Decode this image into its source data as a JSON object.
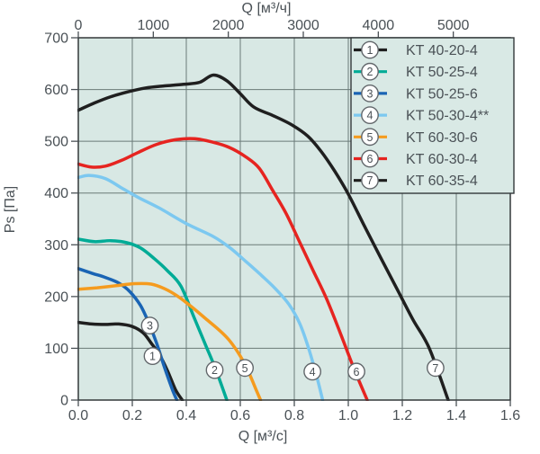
{
  "chart_data": {
    "type": "line",
    "x_axis_bottom": {
      "label": "Q [м³/с]",
      "range": [
        0,
        1.6
      ],
      "ticks": [
        0,
        0.2,
        0.4,
        0.6,
        0.8,
        1.0,
        1.2,
        1.4,
        1.6
      ],
      "tick_labels": [
        "0.0",
        "0.2",
        "0.4",
        "0.6",
        "0.8",
        "1.0",
        "1.2",
        "1.4",
        "1.6"
      ]
    },
    "x_axis_top": {
      "label": "Q [м³/ч]",
      "range": [
        0,
        5760
      ],
      "ticks": [
        0,
        1000,
        2000,
        3000,
        4000,
        5000
      ],
      "tick_labels": [
        "0",
        "1000",
        "2000",
        "3000",
        "4000",
        "5000"
      ]
    },
    "y_axis": {
      "label": "Ps [Па]",
      "range": [
        0,
        700
      ],
      "ticks": [
        0,
        100,
        200,
        300,
        400,
        500,
        600,
        700
      ],
      "tick_labels": [
        "0",
        "100",
        "200",
        "300",
        "400",
        "500",
        "600",
        "700"
      ]
    },
    "grid": true,
    "legend_position": "top-right",
    "series": [
      {
        "number": "1",
        "name": "KT 40-20-4",
        "color": "#1f1f1f",
        "marker": {
          "q": 0.275,
          "p": 85
        },
        "points": [
          [
            0,
            150
          ],
          [
            0.05,
            147
          ],
          [
            0.1,
            146
          ],
          [
            0.15,
            147
          ],
          [
            0.2,
            142
          ],
          [
            0.24,
            130
          ],
          [
            0.27,
            110
          ],
          [
            0.3,
            88
          ],
          [
            0.33,
            57
          ],
          [
            0.36,
            20
          ],
          [
            0.385,
            0
          ]
        ]
      },
      {
        "number": "2",
        "name": "KT 50-25-4",
        "color": "#00ab96",
        "marker": {
          "q": 0.505,
          "p": 58
        },
        "points": [
          [
            0,
            311
          ],
          [
            0.06,
            306
          ],
          [
            0.12,
            308
          ],
          [
            0.18,
            304
          ],
          [
            0.23,
            294
          ],
          [
            0.28,
            274
          ],
          [
            0.33,
            250
          ],
          [
            0.38,
            220
          ],
          [
            0.43,
            158
          ],
          [
            0.47,
            108
          ],
          [
            0.51,
            58
          ],
          [
            0.55,
            0
          ]
        ]
      },
      {
        "number": "3",
        "name": "KT 50-25-6",
        "color": "#1a64b4",
        "marker": {
          "q": 0.265,
          "p": 144
        },
        "points": [
          [
            0,
            254
          ],
          [
            0.05,
            245
          ],
          [
            0.1,
            237
          ],
          [
            0.15,
            226
          ],
          [
            0.19,
            210
          ],
          [
            0.23,
            183
          ],
          [
            0.26,
            150
          ],
          [
            0.29,
            110
          ],
          [
            0.32,
            62
          ],
          [
            0.35,
            18
          ],
          [
            0.365,
            0
          ]
        ]
      },
      {
        "number": "4",
        "name": "KT 50-30-4**",
        "color": "#7cc8f0",
        "marker": {
          "q": 0.867,
          "p": 55
        },
        "points": [
          [
            0,
            430
          ],
          [
            0.04,
            434
          ],
          [
            0.1,
            428
          ],
          [
            0.16,
            410
          ],
          [
            0.22,
            392
          ],
          [
            0.3,
            371
          ],
          [
            0.4,
            341
          ],
          [
            0.5,
            316
          ],
          [
            0.56,
            295
          ],
          [
            0.62,
            268
          ],
          [
            0.68,
            240
          ],
          [
            0.73,
            215
          ],
          [
            0.78,
            185
          ],
          [
            0.82,
            148
          ],
          [
            0.85,
            105
          ],
          [
            0.88,
            52
          ],
          [
            0.905,
            0
          ]
        ]
      },
      {
        "number": "5",
        "name": "KT 60-30-6",
        "color": "#f59b1e",
        "marker": {
          "q": 0.617,
          "p": 62
        },
        "points": [
          [
            0,
            214
          ],
          [
            0.07,
            217
          ],
          [
            0.14,
            221
          ],
          [
            0.21,
            225
          ],
          [
            0.27,
            224
          ],
          [
            0.32,
            215
          ],
          [
            0.37,
            200
          ],
          [
            0.42,
            180
          ],
          [
            0.47,
            158
          ],
          [
            0.52,
            136
          ],
          [
            0.56,
            115
          ],
          [
            0.6,
            85
          ],
          [
            0.63,
            55
          ],
          [
            0.66,
            18
          ],
          [
            0.675,
            0
          ]
        ]
      },
      {
        "number": "6",
        "name": "KT 60-30-4",
        "color": "#e62420",
        "marker": {
          "q": 1.03,
          "p": 55
        },
        "points": [
          [
            0,
            456
          ],
          [
            0.05,
            450
          ],
          [
            0.1,
            452
          ],
          [
            0.16,
            463
          ],
          [
            0.22,
            478
          ],
          [
            0.29,
            494
          ],
          [
            0.36,
            503
          ],
          [
            0.43,
            505
          ],
          [
            0.5,
            498
          ],
          [
            0.56,
            488
          ],
          [
            0.62,
            470
          ],
          [
            0.67,
            448
          ],
          [
            0.72,
            405
          ],
          [
            0.77,
            360
          ],
          [
            0.82,
            305
          ],
          [
            0.87,
            250
          ],
          [
            0.92,
            195
          ],
          [
            0.97,
            130
          ],
          [
            1.02,
            62
          ],
          [
            1.07,
            0
          ]
        ]
      },
      {
        "number": "7",
        "name": "KT 60-35-4",
        "color": "#1f1f1f",
        "marker": {
          "q": 1.323,
          "p": 62
        },
        "points": [
          [
            0,
            560
          ],
          [
            0.06,
            574
          ],
          [
            0.12,
            586
          ],
          [
            0.18,
            595
          ],
          [
            0.25,
            603
          ],
          [
            0.32,
            607
          ],
          [
            0.39,
            610
          ],
          [
            0.45,
            614
          ],
          [
            0.5,
            628
          ],
          [
            0.55,
            617
          ],
          [
            0.6,
            592
          ],
          [
            0.65,
            566
          ],
          [
            0.72,
            550
          ],
          [
            0.79,
            532
          ],
          [
            0.85,
            510
          ],
          [
            0.9,
            480
          ],
          [
            0.95,
            442
          ],
          [
            1.0,
            398
          ],
          [
            1.06,
            336
          ],
          [
            1.12,
            275
          ],
          [
            1.18,
            215
          ],
          [
            1.24,
            155
          ],
          [
            1.3,
            100
          ],
          [
            1.37,
            0
          ]
        ]
      }
    ]
  },
  "colors": {
    "plot_background": "#d8e8e4",
    "grid_line": "#6a7a77",
    "plot_border": "#33383a",
    "axis_text": "#4a5156",
    "marker_fill": "#ffffff",
    "marker_stroke": "#62676b",
    "legend_background": "#d9e9e5",
    "legend_border": "#33383a"
  }
}
